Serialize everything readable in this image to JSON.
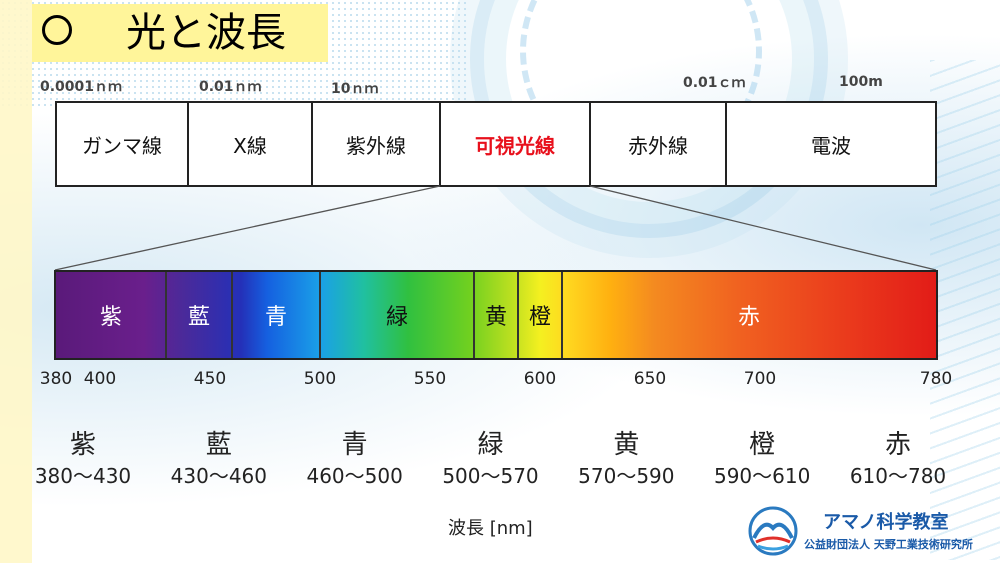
{
  "title": "光と波長",
  "em_scale_labels": [
    "0.0001ｎｍ",
    "0.01ｎｍ",
    "10ｎｍ",
    "0.01ｃｍ",
    "100m"
  ],
  "em_bands": [
    {
      "label": "ガンマ線",
      "color": "#111111"
    },
    {
      "label": "X線",
      "color": "#111111"
    },
    {
      "label": "紫外線",
      "color": "#111111"
    },
    {
      "label": "可視光線",
      "color": "#e8101c"
    },
    {
      "label": "赤外線",
      "color": "#111111"
    },
    {
      "label": "電波",
      "color": "#111111"
    }
  ],
  "chart_data": {
    "type": "spectrum",
    "xlabel": "波長 [nm]",
    "xlim": [
      380,
      780
    ],
    "ticks": [
      380,
      400,
      450,
      500,
      550,
      600,
      650,
      700,
      780
    ],
    "bands": [
      {
        "name": "紫",
        "range": "380〜430",
        "start": 380,
        "end": 430,
        "text_color": "#ffffff"
      },
      {
        "name": "藍",
        "range": "430〜460",
        "start": 430,
        "end": 460,
        "text_color": "#ffffff"
      },
      {
        "name": "青",
        "range": "460〜500",
        "start": 460,
        "end": 500,
        "text_color": "#ffffff"
      },
      {
        "name": "緑",
        "range": "500〜570",
        "start": 500,
        "end": 570,
        "text_color": "#111111"
      },
      {
        "name": "黄",
        "range": "570〜590",
        "start": 570,
        "end": 590,
        "text_color": "#111111"
      },
      {
        "name": "橙",
        "range": "590〜610",
        "start": 590,
        "end": 610,
        "text_color": "#111111"
      },
      {
        "name": "赤",
        "range": "610〜780",
        "start": 610,
        "end": 780,
        "text_color": "#ffffff"
      }
    ]
  },
  "logo": {
    "name": "アマノ科学教室",
    "org": "公益財団法人 天野工業技術研究所"
  }
}
